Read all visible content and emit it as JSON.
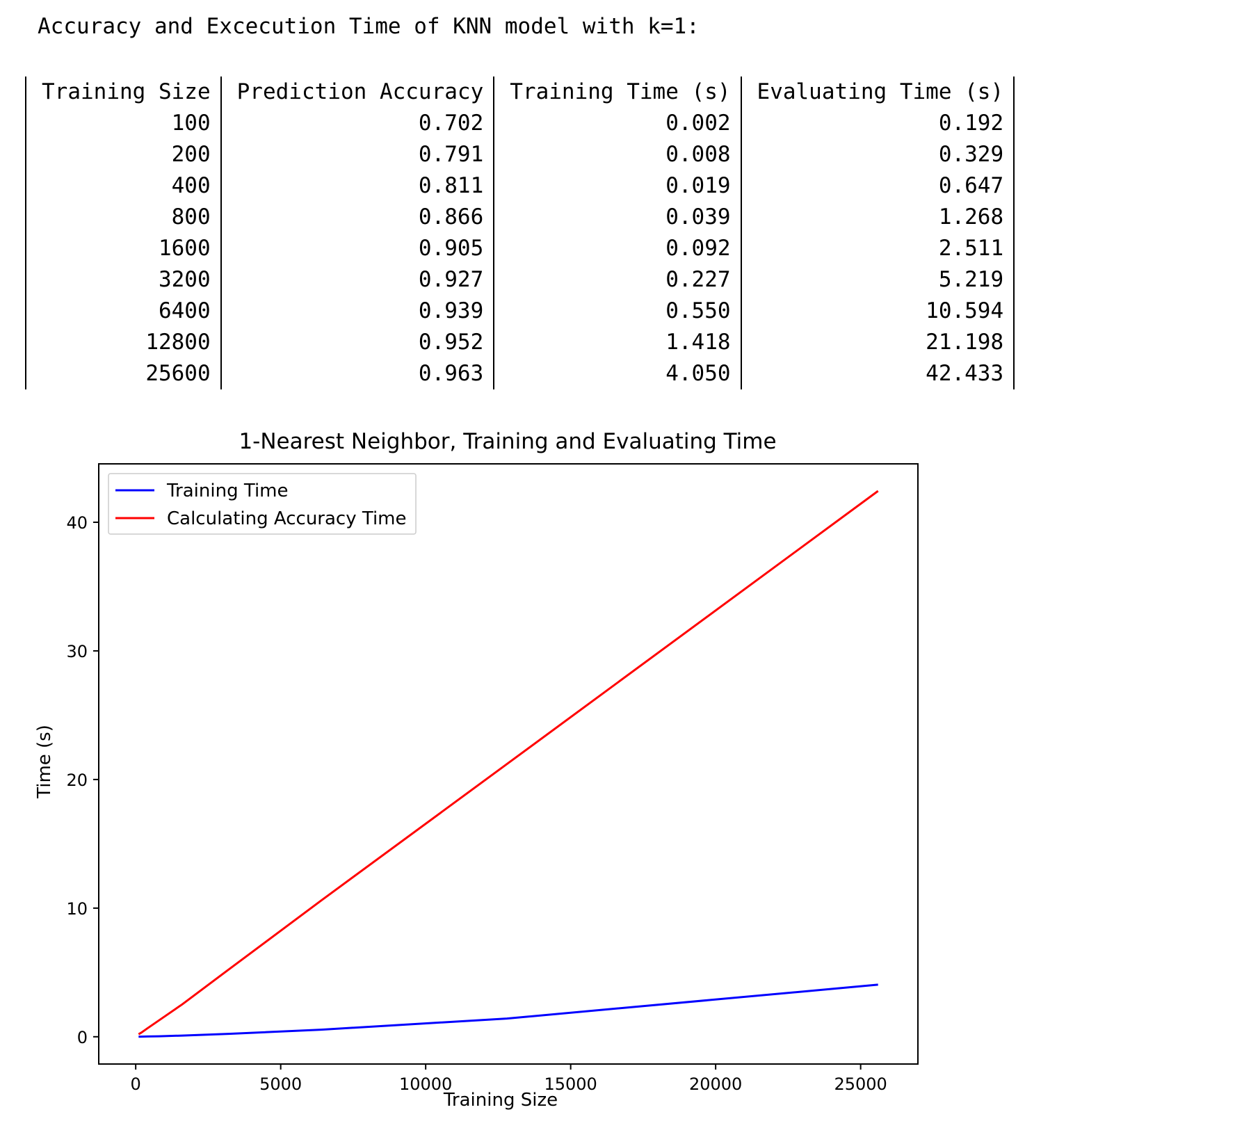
{
  "heading": "Accuracy and Excecution Time of KNN model with k=1:",
  "table": {
    "headers": [
      "Training Size",
      "Prediction Accuracy",
      "Training Time (s)",
      "Evaluating Time (s)"
    ],
    "rows": [
      [
        "100",
        "0.702",
        "0.002",
        "0.192"
      ],
      [
        "200",
        "0.791",
        "0.008",
        "0.329"
      ],
      [
        "400",
        "0.811",
        "0.019",
        "0.647"
      ],
      [
        "800",
        "0.866",
        "0.039",
        "1.268"
      ],
      [
        "1600",
        "0.905",
        "0.092",
        "2.511"
      ],
      [
        "3200",
        "0.927",
        "0.227",
        "5.219"
      ],
      [
        "6400",
        "0.939",
        "0.550",
        "10.594"
      ],
      [
        "12800",
        "0.952",
        "1.418",
        "21.198"
      ],
      [
        "25600",
        "0.963",
        "4.050",
        "42.433"
      ]
    ]
  },
  "chart_data": {
    "type": "line",
    "title": "1-Nearest Neighbor, Training and Evaluating Time",
    "xlabel": "Training Size",
    "ylabel": "Time (s)",
    "xlim": [
      -1275,
      26975
    ],
    "ylim": [
      -2.12,
      44.54
    ],
    "xticks": [
      0,
      5000,
      10000,
      15000,
      20000,
      25000
    ],
    "yticks": [
      0,
      10,
      20,
      30,
      40
    ],
    "grid": false,
    "legend_position": "top-left",
    "x": [
      100,
      200,
      400,
      800,
      1600,
      3200,
      6400,
      12800,
      25600
    ],
    "series": [
      {
        "name": "Training Time",
        "color": "#0000ff",
        "values": [
          0.002,
          0.008,
          0.019,
          0.039,
          0.092,
          0.227,
          0.55,
          1.418,
          4.05
        ]
      },
      {
        "name": "Calculating Accuracy Time",
        "color": "#ff0000",
        "values": [
          0.192,
          0.329,
          0.647,
          1.268,
          2.511,
          5.219,
          10.594,
          21.198,
          42.433
        ]
      }
    ]
  }
}
